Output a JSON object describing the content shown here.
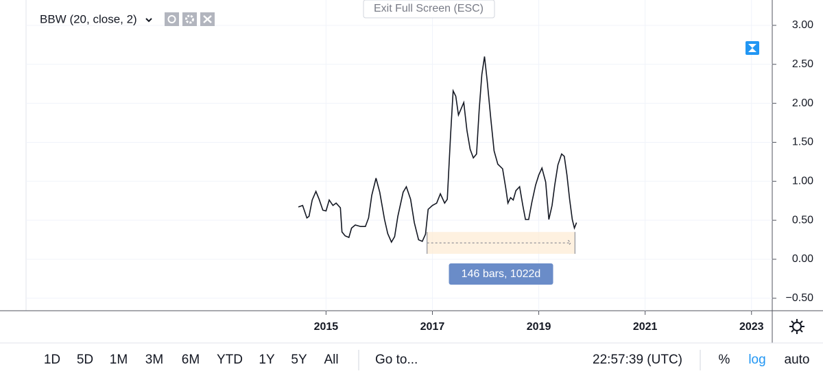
{
  "chart_data": {
    "type": "line",
    "legend_title": "BBW (20, close, 2)",
    "series": [
      {
        "name": "BBW",
        "color": "#131722",
        "x": [
          2014.48,
          2014.56,
          2014.64,
          2014.68,
          2014.74,
          2014.81,
          2014.87,
          2014.94,
          2015.0,
          2015.06,
          2015.13,
          2015.19,
          2015.27,
          2015.3,
          2015.36,
          2015.43,
          2015.48,
          2015.55,
          2015.65,
          2015.74,
          2015.8,
          2015.86,
          2015.94,
          2016.01,
          2016.1,
          2016.16,
          2016.23,
          2016.29,
          2016.35,
          2016.45,
          2016.51,
          2016.59,
          2016.66,
          2016.74,
          2016.81,
          2016.87,
          2016.92,
          2017.0,
          2017.08,
          2017.15,
          2017.23,
          2017.28,
          2017.34,
          2017.39,
          2017.44,
          2017.49,
          2017.54,
          2017.59,
          2017.65,
          2017.71,
          2017.77,
          2017.83,
          2017.88,
          2017.93,
          2017.98,
          2018.03,
          2018.1,
          2018.16,
          2018.23,
          2018.32,
          2018.38,
          2018.42,
          2018.47,
          2018.52,
          2018.57,
          2018.64,
          2018.7,
          2018.75,
          2018.81,
          2018.87,
          2018.94,
          2019.0,
          2019.06,
          2019.13,
          2019.19,
          2019.25,
          2019.3,
          2019.36,
          2019.43,
          2019.48,
          2019.53,
          2019.58,
          2019.63,
          2019.67,
          2019.71
        ],
        "values": [
          0.67,
          0.69,
          0.53,
          0.55,
          0.76,
          0.87,
          0.77,
          0.63,
          0.62,
          0.76,
          0.69,
          0.72,
          0.66,
          0.35,
          0.3,
          0.28,
          0.4,
          0.44,
          0.42,
          0.42,
          0.53,
          0.82,
          1.04,
          0.86,
          0.51,
          0.33,
          0.22,
          0.29,
          0.55,
          0.86,
          0.93,
          0.77,
          0.47,
          0.25,
          0.23,
          0.32,
          0.64,
          0.69,
          0.72,
          0.84,
          0.72,
          0.77,
          1.57,
          2.16,
          2.09,
          1.85,
          1.93,
          2.01,
          1.65,
          1.41,
          1.3,
          1.35,
          1.92,
          2.37,
          2.6,
          2.29,
          1.79,
          1.39,
          1.22,
          1.16,
          0.91,
          0.72,
          0.79,
          0.76,
          0.88,
          0.93,
          0.69,
          0.51,
          0.51,
          0.73,
          0.95,
          1.08,
          1.17,
          0.99,
          0.51,
          0.69,
          0.95,
          1.21,
          1.35,
          1.32,
          1.08,
          0.77,
          0.51,
          0.4,
          0.47
        ]
      }
    ],
    "xlim": [
      2009.36,
      2023.39
    ],
    "xticks": [
      2015,
      2017,
      2019,
      2021,
      2023
    ],
    "ylim": [
      -0.66,
      3.325
    ],
    "yticks": [
      {
        "value": 3,
        "label": "3.00"
      },
      {
        "value": 2.5,
        "label": "2.50"
      },
      {
        "value": 2,
        "label": "2.00"
      },
      {
        "value": 1.5,
        "label": "1.50"
      },
      {
        "value": 1,
        "label": "1.00"
      },
      {
        "value": 0.5,
        "label": "0.50"
      },
      {
        "value": 0,
        "label": "0.00"
      },
      {
        "value": -0.5,
        "label": "−0.50"
      }
    ],
    "grid": true,
    "date_range": {
      "x": [
        2016.9,
        2019.68
      ],
      "y": [
        0.07,
        0.35
      ],
      "label": "146 bars, 1022d"
    }
  },
  "top_button": "Exit Full Screen (ESC)",
  "toolbar": {
    "periods": [
      "1D",
      "5D",
      "1M",
      "3M",
      "6M",
      "YTD",
      "1Y",
      "5Y",
      "All"
    ],
    "goto": "Go to...",
    "clock": "22:57:39 (UTC)",
    "options": [
      "%",
      "log",
      "auto"
    ]
  }
}
